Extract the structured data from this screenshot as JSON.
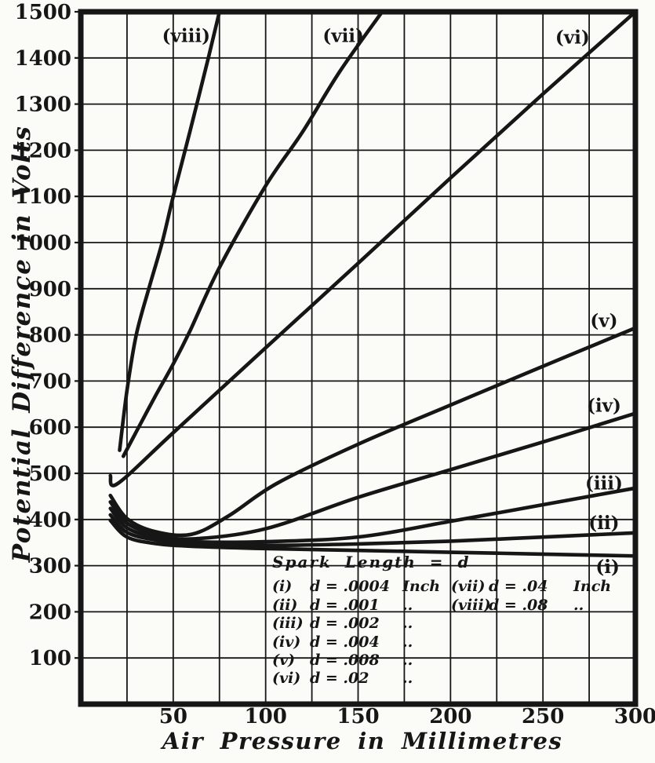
{
  "figure": {
    "background": "#fbfbf8",
    "ink": "#161616"
  },
  "chart_data": {
    "type": "line",
    "title": "",
    "xlabel": "Air Pressure in Millimetres",
    "ylabel": "Potential Difference in Volts",
    "xlim": [
      0,
      300
    ],
    "ylim": [
      0,
      1500
    ],
    "x_ticks": [
      50,
      100,
      150,
      200,
      250,
      300
    ],
    "y_ticks": [
      100,
      200,
      300,
      400,
      500,
      600,
      700,
      800,
      900,
      1000,
      1100,
      1200,
      1300,
      1400,
      1500
    ],
    "grid": {
      "x_step": 25,
      "y_step": 100,
      "on": true
    },
    "legend_position": "inside-bottom-center",
    "series": [
      {
        "name": "(i)",
        "spark_length_inch": 0.0004,
        "label_at": [
          285,
          298
        ],
        "points": [
          [
            16,
            398
          ],
          [
            25,
            362
          ],
          [
            40,
            348
          ],
          [
            60,
            342
          ],
          [
            100,
            337
          ],
          [
            150,
            333
          ],
          [
            200,
            329
          ],
          [
            250,
            325
          ],
          [
            300,
            321
          ]
        ]
      },
      {
        "name": "(ii)",
        "spark_length_inch": 0.001,
        "label_at": [
          283,
          393
        ],
        "points": [
          [
            16,
            410
          ],
          [
            25,
            372
          ],
          [
            40,
            356
          ],
          [
            60,
            348
          ],
          [
            100,
            344
          ],
          [
            150,
            347
          ],
          [
            200,
            353
          ],
          [
            250,
            362
          ],
          [
            300,
            371
          ]
        ]
      },
      {
        "name": "(iii)",
        "spark_length_inch": 0.002,
        "label_at": [
          283,
          479
        ],
        "points": [
          [
            16,
            424
          ],
          [
            25,
            382
          ],
          [
            40,
            362
          ],
          [
            60,
            352
          ],
          [
            100,
            352
          ],
          [
            150,
            362
          ],
          [
            200,
            396
          ],
          [
            250,
            432
          ],
          [
            300,
            468
          ]
        ]
      },
      {
        "name": "(iv)",
        "spark_length_inch": 0.004,
        "label_at": [
          283,
          647
        ],
        "points": [
          [
            16,
            438
          ],
          [
            25,
            392
          ],
          [
            40,
            368
          ],
          [
            60,
            358
          ],
          [
            100,
            380
          ],
          [
            150,
            448
          ],
          [
            200,
            508
          ],
          [
            250,
            568
          ],
          [
            300,
            630
          ]
        ]
      },
      {
        "name": "(v)",
        "spark_length_inch": 0.008,
        "label_at": [
          283,
          831
        ],
        "points": [
          [
            16,
            452
          ],
          [
            25,
            402
          ],
          [
            40,
            374
          ],
          [
            60,
            368
          ],
          [
            80,
            408
          ],
          [
            106,
            478
          ],
          [
            150,
            563
          ],
          [
            200,
            648
          ],
          [
            250,
            732
          ],
          [
            300,
            815
          ]
        ]
      },
      {
        "name": "(vi)",
        "spark_length_inch": 0.02,
        "label_at": [
          266,
          1445
        ],
        "points": [
          [
            16,
            495
          ],
          [
            20,
            478
          ],
          [
            50,
            588
          ],
          [
            100,
            772
          ],
          [
            150,
            955
          ],
          [
            200,
            1140
          ],
          [
            250,
            1322
          ],
          [
            300,
            1500
          ]
        ]
      },
      {
        "name": "(vii)",
        "spark_length_inch": 0.04,
        "label_at": [
          142,
          1448
        ],
        "points": [
          [
            23,
            537
          ],
          [
            30,
            590
          ],
          [
            40,
            665
          ],
          [
            50,
            737
          ],
          [
            59,
            808
          ],
          [
            75,
            946
          ],
          [
            100,
            1123
          ],
          [
            120,
            1240
          ],
          [
            140,
            1370
          ],
          [
            163,
            1500
          ]
        ]
      },
      {
        "name": "(viii)",
        "spark_length_inch": 0.08,
        "label_at": [
          57,
          1448
        ],
        "points": [
          [
            21,
            550
          ],
          [
            25,
            680
          ],
          [
            30,
            800
          ],
          [
            37,
            903
          ],
          [
            44,
            1000
          ],
          [
            50,
            1100
          ],
          [
            59,
            1240
          ],
          [
            69,
            1400
          ],
          [
            75,
            1500
          ]
        ]
      }
    ],
    "legend": {
      "title": "Spark Length = d",
      "entries": [
        {
          "num": "(i)",
          "value": "d = .0004",
          "unit": "Inch",
          "col": 1
        },
        {
          "num": "(ii)",
          "value": "d = .001",
          "unit": "..",
          "col": 1
        },
        {
          "num": "(iii)",
          "value": "d = .002",
          "unit": "..",
          "col": 1
        },
        {
          "num": "(iv)",
          "value": "d = .004",
          "unit": "..",
          "col": 1
        },
        {
          "num": "(v)",
          "value": "d = .008",
          "unit": "..",
          "col": 1
        },
        {
          "num": "(vi)",
          "value": "d = .02",
          "unit": "..",
          "col": 1
        },
        {
          "num": "(vii)",
          "value": "d = .04",
          "unit": "Inch",
          "col": 2
        },
        {
          "num": "(viii)",
          "value": "d = .08",
          "unit": "..",
          "col": 2
        }
      ]
    }
  }
}
